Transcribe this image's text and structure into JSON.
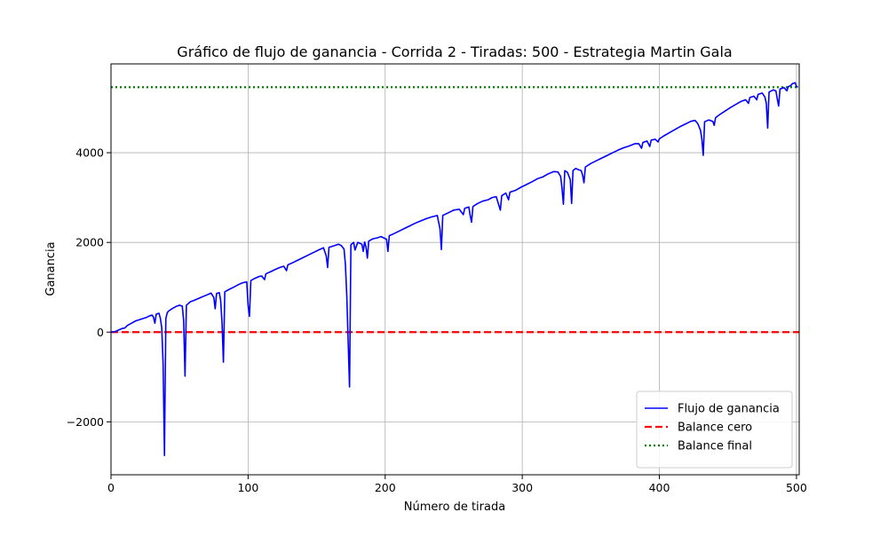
{
  "chart_data": {
    "type": "line",
    "title": "Gráfico de flujo de ganancia - Corrida 2 - Tiradas: 500 - Estrategia Martin Gala",
    "xlabel": "Número de tirada",
    "ylabel": "Ganancia",
    "xlim": [
      0,
      502
    ],
    "ylim": [
      -3180,
      5980
    ],
    "xticks": [
      0,
      100,
      200,
      300,
      400,
      500
    ],
    "xtick_labels": [
      "0",
      "100",
      "200",
      "300",
      "400",
      "500"
    ],
    "yticks": [
      -2000,
      0,
      2000,
      4000
    ],
    "ytick_labels": [
      "−2000",
      "0",
      "2000",
      "4000"
    ],
    "grid": true,
    "legend_position": "lower-right",
    "series": [
      {
        "name": "Flujo de ganancia",
        "color": "#0000ff",
        "style": "solid",
        "points": [
          [
            0,
            0
          ],
          [
            3,
            10
          ],
          [
            5,
            40
          ],
          [
            8,
            80
          ],
          [
            10,
            90
          ],
          [
            12,
            150
          ],
          [
            15,
            200
          ],
          [
            18,
            250
          ],
          [
            21,
            280
          ],
          [
            24,
            310
          ],
          [
            26,
            330
          ],
          [
            28,
            360
          ],
          [
            30,
            380
          ],
          [
            31,
            330
          ],
          [
            32,
            200
          ],
          [
            33,
            400
          ],
          [
            35,
            420
          ],
          [
            36,
            310
          ],
          [
            37,
            100
          ],
          [
            38,
            -700
          ],
          [
            39,
            -2750
          ],
          [
            40,
            300
          ],
          [
            41,
            430
          ],
          [
            42,
            470
          ],
          [
            45,
            530
          ],
          [
            48,
            580
          ],
          [
            50,
            600
          ],
          [
            52,
            580
          ],
          [
            53,
            250
          ],
          [
            54,
            -980
          ],
          [
            55,
            600
          ],
          [
            58,
            680
          ],
          [
            60,
            700
          ],
          [
            63,
            740
          ],
          [
            66,
            780
          ],
          [
            70,
            830
          ],
          [
            73,
            870
          ],
          [
            75,
            770
          ],
          [
            76,
            520
          ],
          [
            77,
            860
          ],
          [
            79,
            880
          ],
          [
            80,
            700
          ],
          [
            81,
            200
          ],
          [
            82,
            -670
          ],
          [
            83,
            900
          ],
          [
            86,
            950
          ],
          [
            90,
            1010
          ],
          [
            93,
            1060
          ],
          [
            96,
            1100
          ],
          [
            99,
            1120
          ],
          [
            100,
            600
          ],
          [
            101,
            350
          ],
          [
            102,
            1150
          ],
          [
            105,
            1200
          ],
          [
            108,
            1240
          ],
          [
            110,
            1250
          ],
          [
            112,
            1170
          ],
          [
            113,
            1300
          ],
          [
            116,
            1340
          ],
          [
            120,
            1400
          ],
          [
            123,
            1440
          ],
          [
            126,
            1470
          ],
          [
            128,
            1370
          ],
          [
            129,
            1500
          ],
          [
            132,
            1540
          ],
          [
            136,
            1600
          ],
          [
            140,
            1660
          ],
          [
            144,
            1720
          ],
          [
            148,
            1780
          ],
          [
            152,
            1840
          ],
          [
            155,
            1880
          ],
          [
            157,
            1700
          ],
          [
            158,
            1440
          ],
          [
            159,
            1890
          ],
          [
            163,
            1930
          ],
          [
            166,
            1960
          ],
          [
            168,
            1930
          ],
          [
            170,
            1850
          ],
          [
            171,
            1500
          ],
          [
            172,
            800
          ],
          [
            173,
            -220
          ],
          [
            174,
            -1220
          ],
          [
            175,
            1950
          ],
          [
            177,
            2000
          ],
          [
            178,
            1830
          ],
          [
            180,
            2000
          ],
          [
            183,
            1960
          ],
          [
            184,
            1800
          ],
          [
            185,
            2010
          ],
          [
            186,
            1900
          ],
          [
            187,
            1650
          ],
          [
            188,
            2030
          ],
          [
            191,
            2080
          ],
          [
            194,
            2100
          ],
          [
            197,
            2130
          ],
          [
            199,
            2100
          ],
          [
            201,
            2070
          ],
          [
            202,
            1800
          ],
          [
            203,
            2150
          ],
          [
            206,
            2190
          ],
          [
            210,
            2250
          ],
          [
            214,
            2310
          ],
          [
            218,
            2370
          ],
          [
            222,
            2430
          ],
          [
            226,
            2480
          ],
          [
            230,
            2530
          ],
          [
            234,
            2570
          ],
          [
            238,
            2600
          ],
          [
            240,
            2300
          ],
          [
            241,
            1840
          ],
          [
            242,
            2600
          ],
          [
            246,
            2660
          ],
          [
            250,
            2720
          ],
          [
            254,
            2740
          ],
          [
            257,
            2620
          ],
          [
            258,
            2760
          ],
          [
            261,
            2790
          ],
          [
            262,
            2600
          ],
          [
            263,
            2450
          ],
          [
            264,
            2800
          ],
          [
            267,
            2860
          ],
          [
            271,
            2920
          ],
          [
            275,
            2950
          ],
          [
            278,
            3000
          ],
          [
            281,
            3020
          ],
          [
            283,
            2820
          ],
          [
            284,
            2720
          ],
          [
            285,
            3040
          ],
          [
            288,
            3100
          ],
          [
            290,
            2950
          ],
          [
            291,
            3120
          ],
          [
            295,
            3160
          ],
          [
            299,
            3230
          ],
          [
            303,
            3290
          ],
          [
            307,
            3350
          ],
          [
            311,
            3420
          ],
          [
            315,
            3460
          ],
          [
            319,
            3530
          ],
          [
            323,
            3580
          ],
          [
            326,
            3570
          ],
          [
            328,
            3470
          ],
          [
            329,
            3200
          ],
          [
            330,
            2850
          ],
          [
            331,
            3600
          ],
          [
            333,
            3560
          ],
          [
            335,
            3400
          ],
          [
            336,
            2870
          ],
          [
            337,
            3600
          ],
          [
            339,
            3650
          ],
          [
            341,
            3620
          ],
          [
            343,
            3600
          ],
          [
            344,
            3500
          ],
          [
            345,
            3330
          ],
          [
            346,
            3680
          ],
          [
            350,
            3760
          ],
          [
            354,
            3820
          ],
          [
            358,
            3880
          ],
          [
            362,
            3940
          ],
          [
            366,
            4000
          ],
          [
            370,
            4060
          ],
          [
            374,
            4110
          ],
          [
            378,
            4150
          ],
          [
            382,
            4200
          ],
          [
            385,
            4200
          ],
          [
            387,
            4100
          ],
          [
            388,
            4230
          ],
          [
            391,
            4260
          ],
          [
            393,
            4140
          ],
          [
            394,
            4280
          ],
          [
            397,
            4300
          ],
          [
            399,
            4240
          ],
          [
            400,
            4310
          ],
          [
            403,
            4370
          ],
          [
            407,
            4440
          ],
          [
            411,
            4510
          ],
          [
            415,
            4580
          ],
          [
            419,
            4640
          ],
          [
            423,
            4700
          ],
          [
            426,
            4720
          ],
          [
            428,
            4650
          ],
          [
            430,
            4500
          ],
          [
            431,
            4300
          ],
          [
            432,
            3940
          ],
          [
            433,
            4690
          ],
          [
            436,
            4730
          ],
          [
            439,
            4700
          ],
          [
            440,
            4610
          ],
          [
            441,
            4780
          ],
          [
            444,
            4850
          ],
          [
            448,
            4930
          ],
          [
            452,
            5010
          ],
          [
            456,
            5080
          ],
          [
            460,
            5150
          ],
          [
            463,
            5180
          ],
          [
            465,
            5100
          ],
          [
            466,
            5230
          ],
          [
            469,
            5260
          ],
          [
            471,
            5180
          ],
          [
            472,
            5300
          ],
          [
            475,
            5330
          ],
          [
            477,
            5240
          ],
          [
            478,
            5100
          ],
          [
            479,
            4550
          ],
          [
            480,
            5350
          ],
          [
            483,
            5400
          ],
          [
            485,
            5380
          ],
          [
            486,
            5200
          ],
          [
            487,
            5040
          ],
          [
            488,
            5420
          ],
          [
            491,
            5450
          ],
          [
            493,
            5380
          ],
          [
            494,
            5470
          ],
          [
            496,
            5500
          ],
          [
            497,
            5540
          ],
          [
            499,
            5560
          ],
          [
            500,
            5480
          ],
          [
            501,
            5460
          ]
        ]
      },
      {
        "name": "Balance cero",
        "color": "#ff0000",
        "style": "dashed",
        "points": [
          [
            0,
            0
          ],
          [
            502,
            0
          ]
        ]
      },
      {
        "name": "Balance final",
        "color": "#008000",
        "style": "dotted",
        "points": [
          [
            0,
            5460
          ],
          [
            502,
            5460
          ]
        ]
      }
    ]
  }
}
